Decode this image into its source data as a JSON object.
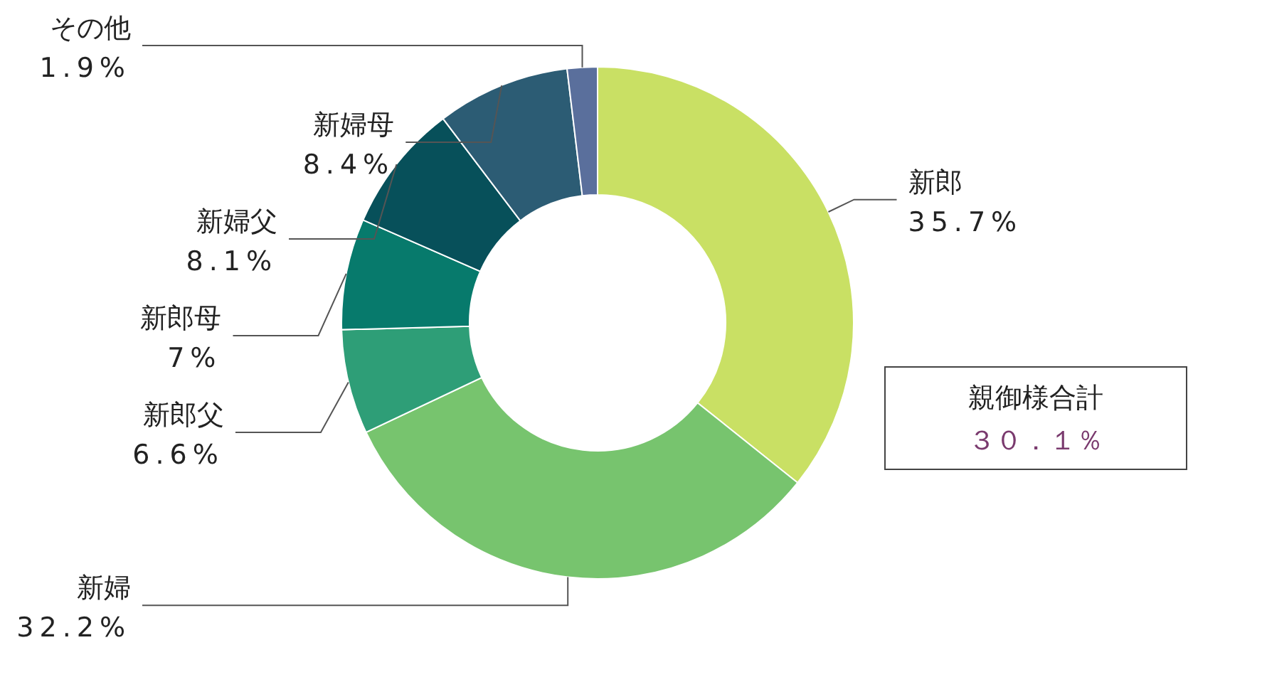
{
  "chart_data": {
    "type": "donut",
    "categories": [
      "新郎",
      "新婦",
      "新郎父",
      "新郎母",
      "新婦父",
      "新婦母",
      "その他"
    ],
    "values": [
      35.7,
      32.2,
      6.6,
      7,
      8.1,
      8.4,
      1.9
    ],
    "value_labels": [
      "35.7%",
      "32.2%",
      "6.6%",
      "7%",
      "8.1%",
      "8.4%",
      "1.9%"
    ],
    "colors": [
      "#c9e064",
      "#77c46e",
      "#2e9e77",
      "#077a6c",
      "#07505a",
      "#2c5c74",
      "#5a6f9c"
    ],
    "annotations": [
      "親御様合計",
      "３０．１％"
    ]
  }
}
